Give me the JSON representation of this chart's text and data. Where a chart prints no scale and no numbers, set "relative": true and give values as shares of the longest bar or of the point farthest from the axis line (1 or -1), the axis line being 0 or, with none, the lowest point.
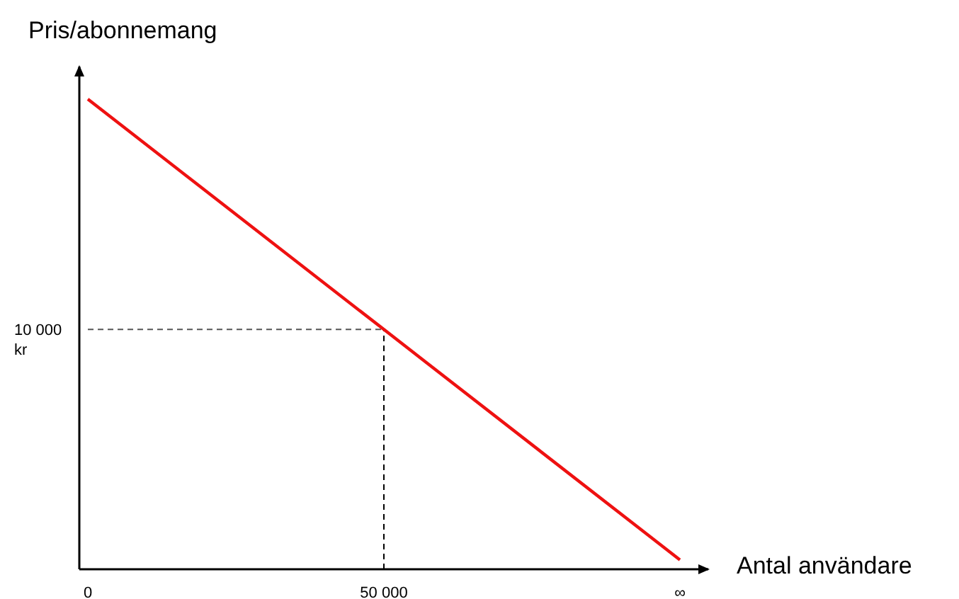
{
  "chart_data": {
    "type": "line",
    "relative": true,
    "xlabel": "Antal användare",
    "ylabel": "Pris/abonnemang",
    "categories": [
      "0",
      "50 000",
      "∞"
    ],
    "series": [
      {
        "color": "#ee1111",
        "values": [
          1,
          0.51,
          0.02
        ]
      }
    ],
    "ref_lines": [
      {
        "axis": "y",
        "value": 0.51,
        "label": "10 000 kr",
        "color": "#555555",
        "line_style": "dashed"
      },
      {
        "axis": "x",
        "value": "50 000",
        "color": "#000000",
        "line_style": "dashed"
      }
    ],
    "grid": false,
    "marker": "none",
    "line_style": "solid"
  }
}
